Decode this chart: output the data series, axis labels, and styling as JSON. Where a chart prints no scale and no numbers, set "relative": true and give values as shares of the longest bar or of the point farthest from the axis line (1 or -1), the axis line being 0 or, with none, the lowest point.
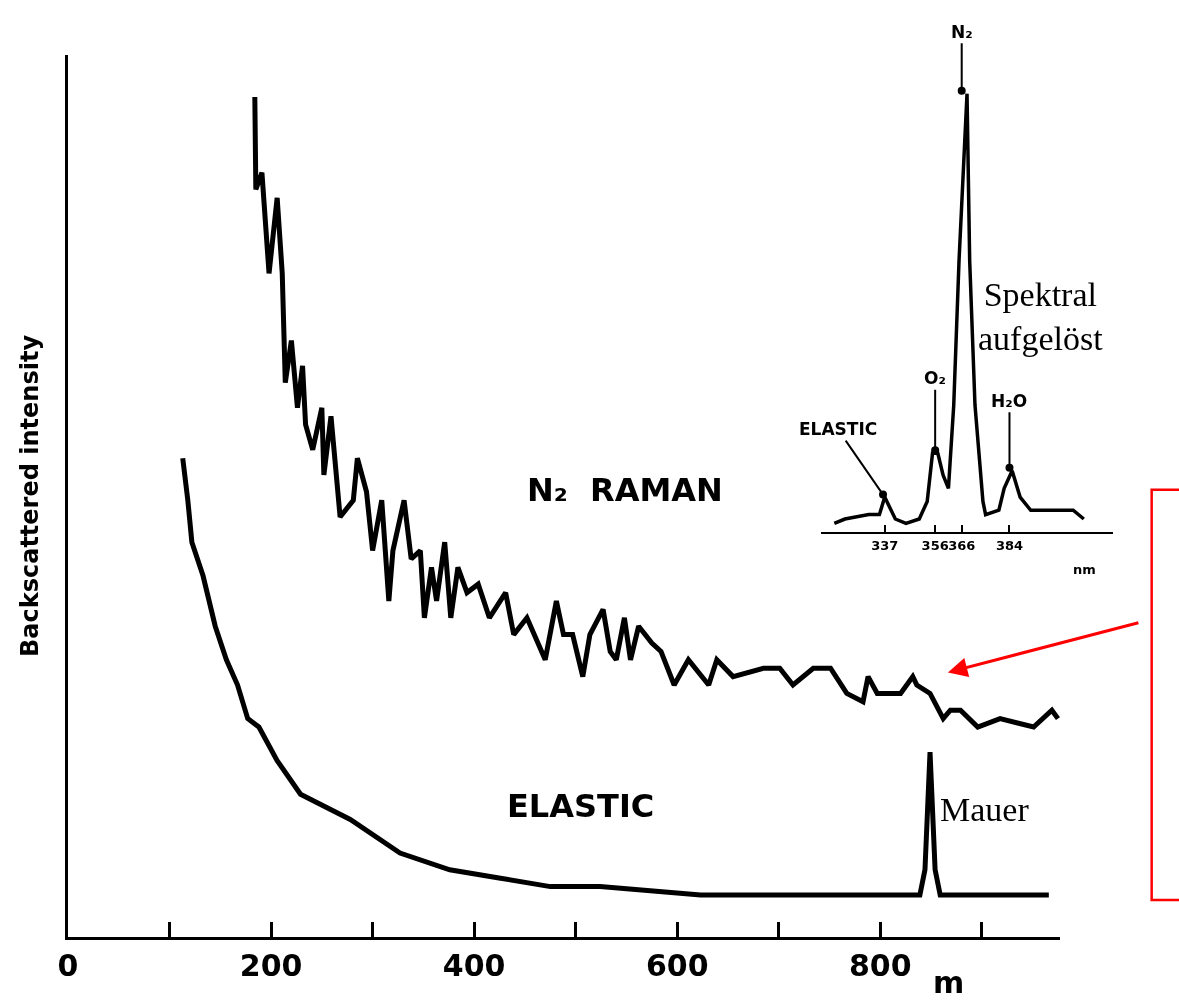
{
  "chart_data": [
    {
      "type": "line",
      "relative": true,
      "ylabel": "Backscattered intensity",
      "xlabel": "m",
      "xlim": [
        0,
        977
      ],
      "xticks": [
        0,
        {
          "value": 100,
          "label": null
        },
        200,
        {
          "value": 300,
          "label": null
        },
        400,
        {
          "value": 500,
          "label": null
        },
        600,
        {
          "value": 700,
          "label": null
        },
        800,
        {
          "value": 900,
          "label": null
        }
      ],
      "series": [
        {
          "name": "N₂  RAMAN",
          "color": "#000000",
          "x": [
            184,
            185,
            191,
            198,
            206,
            211,
            214,
            220,
            226,
            231,
            234,
            241,
            250,
            252,
            259,
            268,
            281,
            285,
            294,
            300,
            309,
            316,
            320,
            331,
            338,
            347,
            351,
            358,
            363,
            371,
            377,
            384,
            393,
            404,
            415,
            431,
            439,
            452,
            470,
            481,
            488,
            497,
            507,
            514,
            527,
            534,
            540,
            548,
            554,
            562,
            575,
            584,
            597,
            611,
            631,
            639,
            655,
            685,
            701,
            714,
            734,
            751,
            767,
            783,
            788,
            797,
            820,
            832,
            836,
            849,
            862,
            869,
            879,
            896,
            918,
            951,
            969,
            975
          ],
          "values": [
            1.0,
            0.89,
            0.91,
            0.79,
            0.88,
            0.79,
            0.66,
            0.71,
            0.63,
            0.68,
            0.61,
            0.58,
            0.63,
            0.55,
            0.62,
            0.5,
            0.52,
            0.57,
            0.53,
            0.46,
            0.52,
            0.4,
            0.46,
            0.52,
            0.45,
            0.46,
            0.38,
            0.44,
            0.4,
            0.47,
            0.38,
            0.44,
            0.41,
            0.42,
            0.38,
            0.41,
            0.36,
            0.38,
            0.33,
            0.4,
            0.36,
            0.36,
            0.31,
            0.36,
            0.39,
            0.34,
            0.33,
            0.38,
            0.33,
            0.37,
            0.35,
            0.34,
            0.3,
            0.33,
            0.3,
            0.33,
            0.31,
            0.32,
            0.32,
            0.3,
            0.32,
            0.32,
            0.29,
            0.28,
            0.31,
            0.29,
            0.29,
            0.31,
            0.3,
            0.29,
            0.26,
            0.27,
            0.27,
            0.25,
            0.26,
            0.25,
            0.27,
            0.26
          ]
        },
        {
          "name": "ELASTIC",
          "color": "#000000",
          "x": [
            113,
            118,
            122,
            133,
            145,
            156,
            167,
            177,
            188,
            206,
            229,
            278,
            327,
            376,
            426,
            475,
            524,
            623,
            721,
            820,
            839,
            844,
            849,
            854,
            859,
            966
          ],
          "values": [
            0.57,
            0.52,
            0.47,
            0.43,
            0.37,
            0.33,
            0.3,
            0.26,
            0.25,
            0.21,
            0.17,
            0.14,
            0.1,
            0.08,
            0.07,
            0.06,
            0.06,
            0.05,
            0.05,
            0.05,
            0.05,
            0.08,
            0.22,
            0.08,
            0.05,
            0.05
          ]
        }
      ],
      "annotations": [
        "Spektral aufgelöst",
        "Mauer"
      ]
    },
    {
      "type": "line",
      "relative": true,
      "xlabel": "nm",
      "xlim": [
        313,
        423
      ],
      "xticks": [
        337,
        356,
        366,
        384
      ],
      "color": "#000000",
      "x": [
        318,
        322,
        331,
        335,
        337,
        341,
        345,
        350,
        353,
        355,
        357,
        359,
        361,
        363,
        365,
        368,
        369,
        371,
        374,
        375,
        380,
        382,
        385,
        388,
        392,
        396,
        408,
        412
      ],
      "values": [
        0.02,
        0.03,
        0.04,
        0.04,
        0.08,
        0.03,
        0.02,
        0.03,
        0.07,
        0.18,
        0.18,
        0.13,
        0.1,
        0.29,
        0.62,
        1.0,
        0.62,
        0.29,
        0.07,
        0.04,
        0.05,
        0.1,
        0.14,
        0.08,
        0.05,
        0.05,
        0.05,
        0.03
      ],
      "annotations": [
        {
          "text": "ELASTIC",
          "x": 337,
          "y": 0.08
        },
        {
          "text": "O₂",
          "x": 356,
          "y": 0.18
        },
        {
          "text": "N₂",
          "x": 366,
          "y": 1.0
        },
        {
          "text": "H₂O",
          "x": 384,
          "y": 0.14
        }
      ]
    }
  ]
}
